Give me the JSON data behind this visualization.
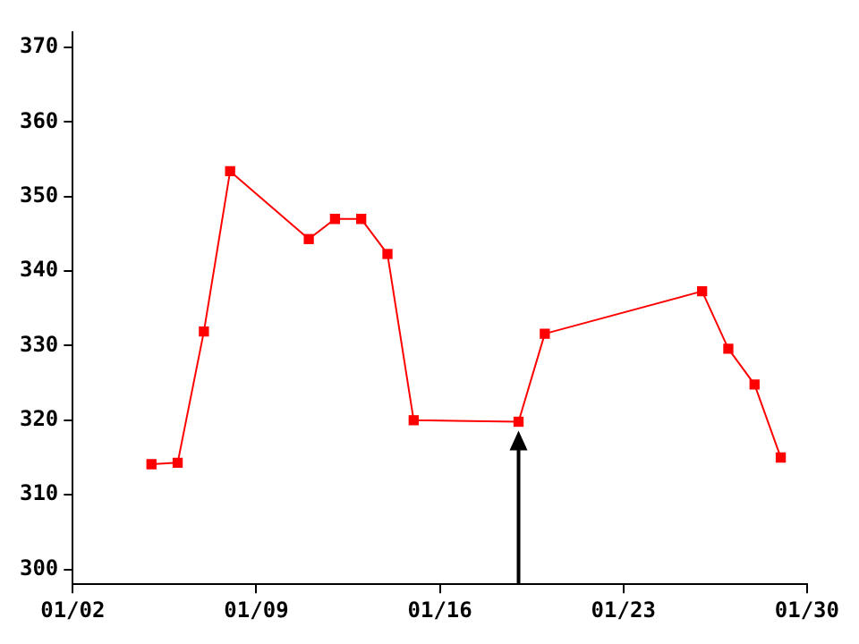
{
  "chart_data": {
    "type": "line",
    "x": [
      "--01-05",
      "--01-06",
      "--01-07",
      "--01-08",
      "--01-11",
      "--01-12",
      "--01-13",
      "--01-14",
      "--01-15",
      "--01-19",
      "--01-20",
      "--01-26",
      "--01-27",
      "--01-28",
      "--01-29"
    ],
    "series": [
      {
        "color": "#ff0000",
        "values": [
          314.1,
          314.3,
          331.9,
          353.4,
          344.3,
          347,
          347,
          342.3,
          320,
          319.8,
          331.6,
          337.3,
          329.6,
          324.8,
          315
        ]
      }
    ],
    "xlim": [
      "--01-02",
      "--01-30"
    ],
    "xticks": [
      {
        "value": "--01-02",
        "label": "01/02"
      },
      {
        "value": "--01-09",
        "label": "01/09"
      },
      {
        "value": "--01-16",
        "label": "01/16"
      },
      {
        "value": "--01-23",
        "label": "01/23"
      },
      {
        "value": "--01-30",
        "label": "01/30"
      }
    ],
    "ylim": [
      298,
      372
    ],
    "yticks": [
      300,
      310,
      320,
      330,
      340,
      350,
      360,
      370
    ],
    "grid": false,
    "legend": false,
    "marker": "square",
    "line_style": "solid"
  }
}
